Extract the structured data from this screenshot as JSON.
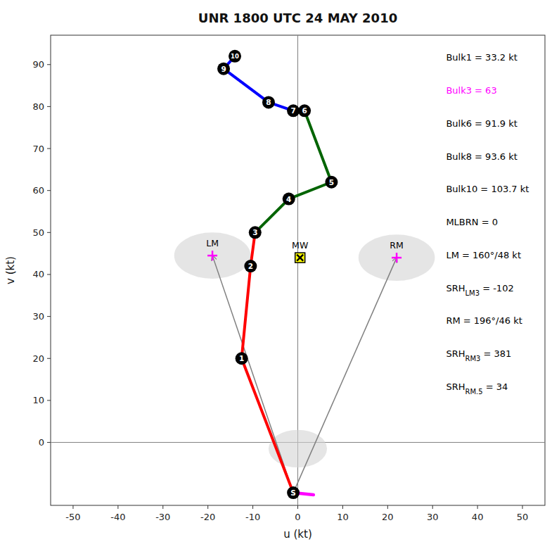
{
  "chart_data": {
    "type": "hodograph",
    "title": "UNR 1800 UTC 24 MAY 2010",
    "xlabel": "u (kt)",
    "ylabel": "v (kt)",
    "xlim": [
      -55,
      55
    ],
    "ylim": [
      -15,
      97
    ],
    "xticks": [
      -50,
      -40,
      -30,
      -20,
      -10,
      0,
      10,
      20,
      30,
      40,
      50
    ],
    "yticks": [
      0,
      10,
      20,
      30,
      40,
      50,
      60,
      70,
      80,
      90
    ],
    "grid": false,
    "points": {
      "labels": [
        "S",
        "1",
        "2",
        "3",
        "4",
        "5",
        "6",
        "7",
        "8",
        "9",
        "10"
      ],
      "x": [
        -1.0,
        -12.5,
        -10.5,
        -9.5,
        -2.0,
        7.5,
        1.5,
        -1.0,
        -6.5,
        -16.5,
        -14.0
      ],
      "values": [
        -12.0,
        20.0,
        42.0,
        50.0,
        58.0,
        62.0,
        79.0,
        79.0,
        81.0,
        89.0,
        92.0
      ]
    },
    "segments": [
      {
        "indices": [
          0,
          1,
          2,
          3
        ],
        "color": "red"
      },
      {
        "indices": [
          3,
          4,
          5,
          6
        ],
        "color": "darkgreen"
      },
      {
        "indices": [
          6,
          7,
          8,
          9,
          10
        ],
        "color": "blue"
      }
    ],
    "storm_motions": [
      {
        "label": "LM",
        "x": -19.0,
        "y": 44.5,
        "marker": "plus",
        "color": "magenta"
      },
      {
        "label": "RM",
        "x": 22.0,
        "y": 44.0,
        "marker": "plus",
        "color": "magenta"
      },
      {
        "label": "MW",
        "x": 0.5,
        "y": 44.0,
        "marker": "square-x",
        "color": "yellow"
      }
    ],
    "ellipses": [
      {
        "cx": 0.0,
        "cy": -1.5,
        "w": 13,
        "h": 9
      },
      {
        "cx": -19.0,
        "cy": 44.5,
        "w": 17,
        "h": 11
      },
      {
        "cx": 22.0,
        "cy": 44.0,
        "w": 17,
        "h": 11
      }
    ],
    "shear_line": {
      "x": [
        -1.0,
        3.5
      ],
      "values": [
        -12.0,
        -12.5
      ],
      "color": "magenta"
    },
    "reference_lines": [
      {
        "axis": "y",
        "value": 0
      },
      {
        "axis": "x",
        "value": 0
      }
    ],
    "annotations": [
      {
        "text": "Bulk1 = 33.2 kt",
        "color": "black"
      },
      {
        "text": "Bulk3 = 63",
        "color": "magenta"
      },
      {
        "text": "Bulk6 = 91.9 kt",
        "color": "black"
      },
      {
        "text": "Bulk8 = 93.6 kt",
        "color": "black"
      },
      {
        "text": "Bulk10 = 103.7 kt",
        "color": "black"
      },
      {
        "text": "MLBRN = 0",
        "color": "black"
      },
      {
        "text": "LM = 160°/48 kt",
        "color": "black"
      },
      {
        "text": "SRH",
        "subscript": "LM3",
        "suffix": " = -102",
        "color": "black"
      },
      {
        "text": "RM = 196°/46 kt",
        "color": "black"
      },
      {
        "text": "SRH",
        "subscript": "RM3",
        "suffix": " = 381",
        "color": "black"
      },
      {
        "text": "SRH",
        "subscript": "RM.5",
        "suffix": " = 34",
        "color": "black"
      }
    ]
  }
}
